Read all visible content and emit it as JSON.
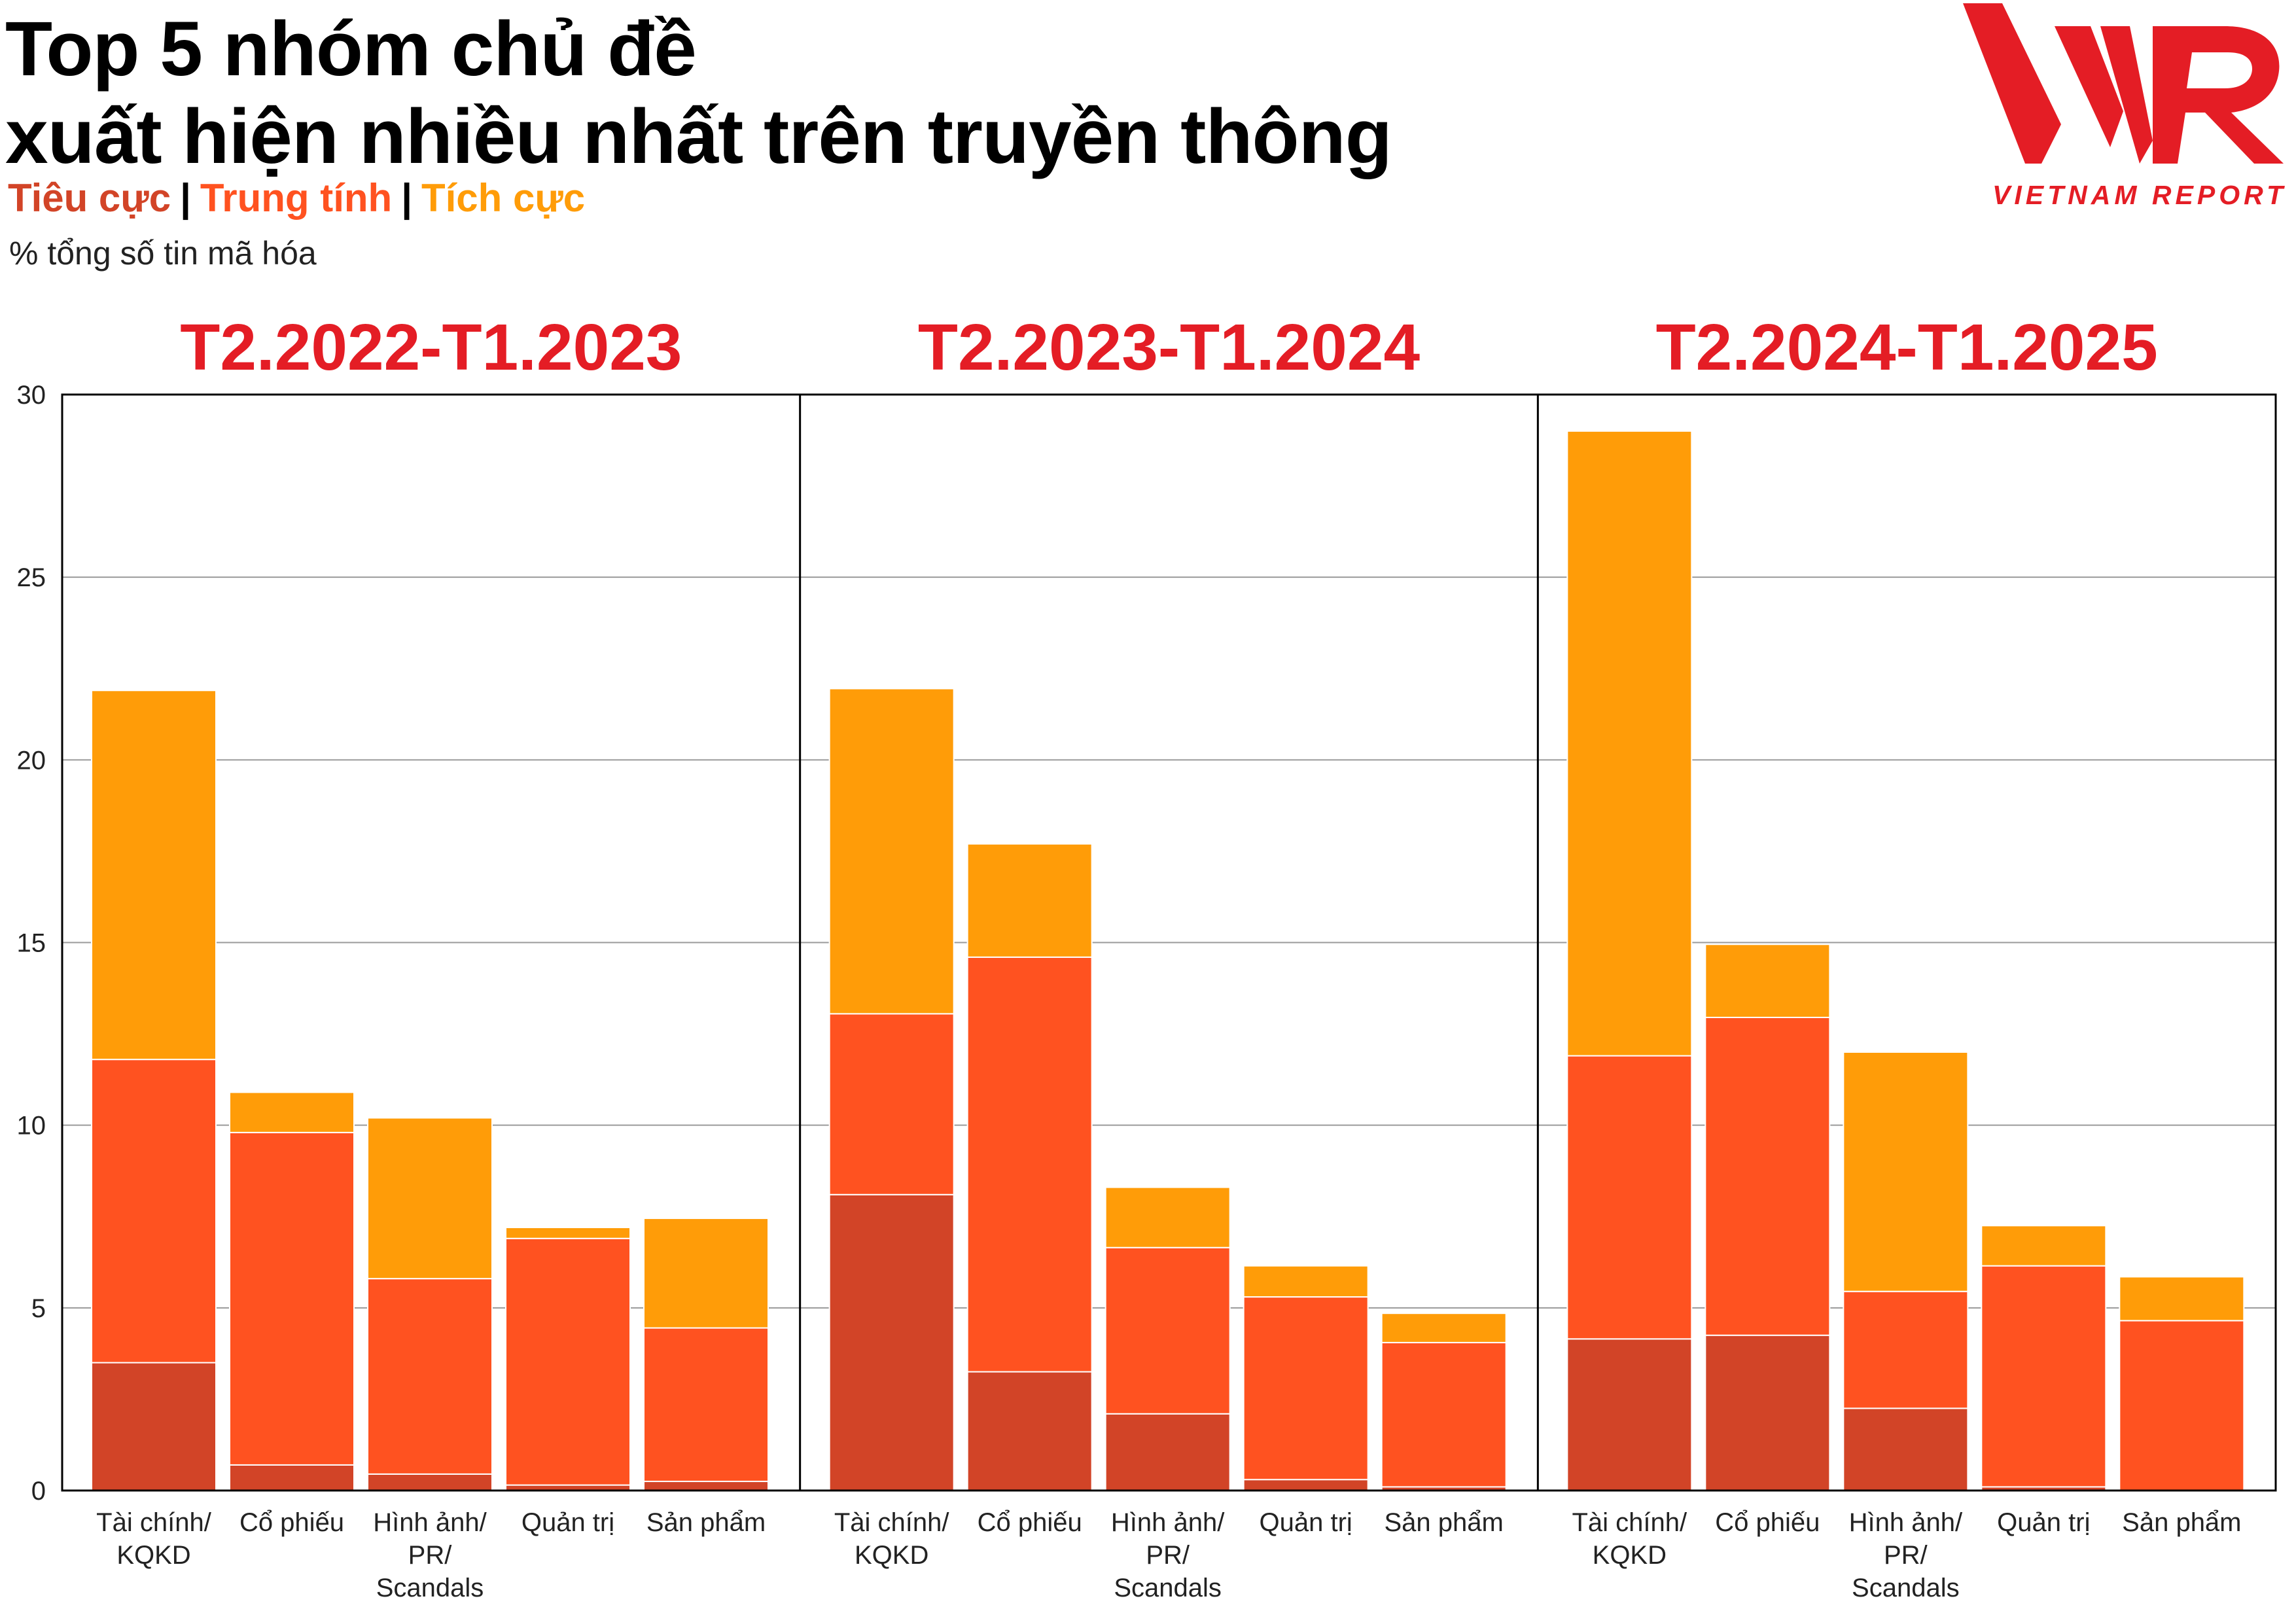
{
  "title": {
    "line1": "Top 5 nhóm chủ đề",
    "line2": "xuất hiện nhiều nhất trên truyền thông"
  },
  "legend": {
    "negative": "Tiêu cực",
    "neutral": "Trung tính",
    "positive": "Tích cực",
    "separator": "|"
  },
  "unit_label": "% tổng số tin mã hóa",
  "logo": {
    "mark": "VNR",
    "caption": "VIETNAM REPORT",
    "color": "#e41d25"
  },
  "colors": {
    "negative": "#d24427",
    "neutral": "#ff5220",
    "positive": "#ff9c08",
    "title_red": "#e41d25",
    "grid": "#9a9a9a"
  },
  "chart_data": {
    "type": "bar",
    "stacked": true,
    "ylim": [
      0,
      30
    ],
    "yticks": [
      0,
      5,
      10,
      15,
      20,
      25,
      30
    ],
    "grid": true,
    "categories": [
      "Tài chính/\nKQKD",
      "Cổ phiếu",
      "Hình ảnh/\nPR/\nScandals",
      "Quản trị",
      "Sản phẩm"
    ],
    "series_names": [
      "Tiêu cực",
      "Trung tính",
      "Tích cực"
    ],
    "panels": [
      {
        "title": "T2.2022-T1.2023",
        "series": [
          {
            "name": "Tiêu cực",
            "values": [
              3.5,
              0.7,
              0.45,
              0.15,
              0.25
            ]
          },
          {
            "name": "Trung tính",
            "values": [
              8.3,
              9.1,
              5.35,
              6.75,
              4.2
            ]
          },
          {
            "name": "Tích cực",
            "values": [
              10.1,
              1.1,
              4.4,
              0.3,
              3.0
            ]
          }
        ]
      },
      {
        "title": "T2.2023-T1.2024",
        "series": [
          {
            "name": "Tiêu cực",
            "values": [
              8.1,
              3.25,
              2.1,
              0.3,
              0.1
            ]
          },
          {
            "name": "Trung tính",
            "values": [
              4.95,
              11.35,
              4.55,
              5.0,
              3.95
            ]
          },
          {
            "name": "Tích cực",
            "values": [
              8.9,
              3.1,
              1.65,
              0.85,
              0.8
            ]
          }
        ]
      },
      {
        "title": "T2.2024-T1.2025",
        "series": [
          {
            "name": "Tiêu cực",
            "values": [
              4.15,
              4.25,
              2.25,
              0.1,
              0.0
            ]
          },
          {
            "name": "Trung tính",
            "values": [
              7.75,
              8.7,
              3.2,
              6.05,
              4.65
            ]
          },
          {
            "name": "Tích cực",
            "values": [
              17.1,
              2.0,
              6.55,
              1.1,
              1.2
            ]
          }
        ]
      }
    ]
  }
}
